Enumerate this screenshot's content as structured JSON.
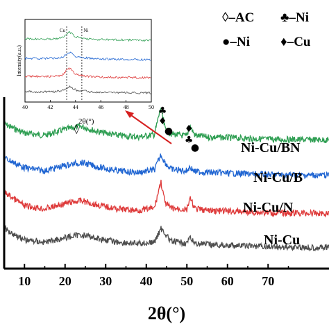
{
  "chart_data": {
    "type": "line",
    "title": "",
    "xlabel": "2θ(°)",
    "ylabel": "",
    "xlim": [
      5,
      85
    ],
    "xticks": [
      10,
      20,
      30,
      40,
      50,
      60,
      70
    ],
    "yticks_visible": false,
    "legend": [
      {
        "symbol": "◊",
        "text": "–AC"
      },
      {
        "symbol": "♣",
        "text": "–Ni"
      },
      {
        "symbol": "●",
        "text": "–Ni"
      },
      {
        "symbol": "♦",
        "text": "–Cu"
      }
    ],
    "series": [
      {
        "name": "Ni-Cu/BN",
        "color": "#2e9e52",
        "offset": 7.0,
        "x": [
          5,
          10,
          15,
          20,
          24,
          28,
          33,
          38,
          42,
          43.6,
          44.6,
          46,
          50,
          50.7,
          52,
          55,
          60,
          70,
          85
        ],
        "y": [
          1.2,
          0.6,
          0.45,
          0.85,
          1.05,
          0.7,
          0.45,
          0.35,
          0.5,
          2.3,
          0.9,
          0.55,
          0.4,
          1.1,
          0.45,
          0.35,
          0.3,
          0.2,
          0.15
        ]
      },
      {
        "name": "Ni-Cu/B",
        "color": "#2166d2",
        "offset": 5.0,
        "x": [
          5,
          10,
          15,
          20,
          24,
          28,
          33,
          38,
          42,
          43.6,
          44.6,
          46,
          50,
          50.7,
          52,
          55,
          60,
          70,
          85
        ],
        "y": [
          1.3,
          0.65,
          0.45,
          0.8,
          1.0,
          0.7,
          0.45,
          0.35,
          0.5,
          1.5,
          1.0,
          0.55,
          0.45,
          0.7,
          0.4,
          0.35,
          0.3,
          0.2,
          0.15
        ]
      },
      {
        "name": "Ni-Cu/N",
        "color": "#de3a3a",
        "offset": 2.7,
        "x": [
          5,
          10,
          15,
          20,
          24,
          28,
          33,
          38,
          42,
          43.6,
          44.6,
          46,
          50,
          50.7,
          52,
          55,
          60,
          70,
          85
        ],
        "y": [
          1.6,
          0.7,
          0.5,
          0.85,
          1.05,
          0.75,
          0.5,
          0.4,
          0.55,
          2.3,
          0.9,
          0.55,
          0.45,
          1.2,
          0.5,
          0.4,
          0.35,
          0.25,
          0.2
        ]
      },
      {
        "name": "Ni-Cu",
        "color": "#4d4d4d",
        "offset": 0.6,
        "x": [
          5,
          10,
          15,
          20,
          24,
          28,
          33,
          38,
          42,
          43.6,
          44.6,
          46,
          50,
          50.7,
          52,
          55,
          60,
          70,
          85
        ],
        "y": [
          1.4,
          0.65,
          0.5,
          0.8,
          1.0,
          0.75,
          0.5,
          0.4,
          0.5,
          1.4,
          1.1,
          0.55,
          0.45,
          0.75,
          0.45,
          0.35,
          0.3,
          0.2,
          0.15
        ]
      }
    ],
    "peak_markers": [
      {
        "symbol": "♣",
        "x": 44.0
      },
      {
        "symbol": "♦",
        "x": 44.0
      },
      {
        "symbol": "●",
        "x": 45.5
      },
      {
        "symbol": "♦",
        "x": 50.5
      },
      {
        "symbol": "♣",
        "x": 50.5
      },
      {
        "symbol": "●",
        "x": 52.0
      }
    ],
    "amorphous_marker": {
      "symbol": "◊",
      "label": "2θ(°)",
      "x": 23.5
    },
    "inset": {
      "xlim": [
        40,
        50
      ],
      "xticks": [
        40,
        42,
        44,
        46,
        48,
        50
      ],
      "ylabel": "Intensity(a.u.)",
      "reference_lines": [
        {
          "label": "Cu",
          "x": 43.3
        },
        {
          "label": "Ni",
          "x": 44.5
        }
      ],
      "series": [
        {
          "color": "#2e9e52",
          "base": 3,
          "peak": 0.9
        },
        {
          "color": "#2166d2",
          "base": 2,
          "peak": 0.85
        },
        {
          "color": "#de3a3a",
          "base": 1,
          "peak": 1.2
        },
        {
          "color": "#4d4d4d",
          "base": 0,
          "peak": 0.6
        }
      ]
    }
  }
}
